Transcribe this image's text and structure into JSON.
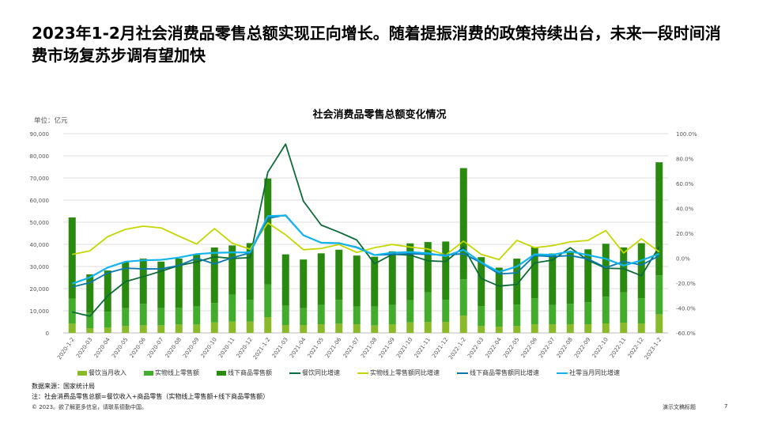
{
  "headline": "2023年1-2月社会消费品零售总额实现正向增长。随着提振消费的政策持续出台，未来一段时间消费市场复苏步调有望加快",
  "chart_data": {
    "type": "bar+line",
    "title": "社会消费品零售总额变化情况",
    "unit_label": "单位：亿元",
    "categories": [
      "2020-1-2",
      "2020-03",
      "2020-04",
      "2020-05",
      "2020-06",
      "2020-07",
      "2020-08",
      "2020-09",
      "2020-10",
      "2020-11",
      "2020-12",
      "2021-1-2",
      "2021-03",
      "2021-04",
      "2021-05",
      "2021-06",
      "2021-07",
      "2021-08",
      "2021-09",
      "2021-10",
      "2021-11",
      "2021-12",
      "2022-1-2",
      "2022-03",
      "2022-04",
      "2022-05",
      "2022-06",
      "2022-07",
      "2022-08",
      "2022-09",
      "2022-10",
      "2022-11",
      "2022-12",
      "2023-1-2"
    ],
    "left_axis": {
      "min": 0,
      "max": 90000,
      "ticks": [
        "0",
        "10,000",
        "20,000",
        "30,000",
        "40,000",
        "50,000",
        "60,000",
        "70,000",
        "80,000",
        "90,000"
      ]
    },
    "right_axis": {
      "min": -60,
      "max": 100,
      "ticks": [
        "-60.0%",
        "-40.0%",
        "-20.0%",
        "0.0%",
        "20.0%",
        "40.0%",
        "60.0%",
        "80.0%",
        "100.0%"
      ]
    },
    "grid": true,
    "legend_position": "bottom",
    "bar_series": [
      {
        "name": "餐饮当月收入",
        "color": "#8aba2a",
        "values": [
          4280,
          2140,
          2380,
          3090,
          3440,
          3440,
          3800,
          3800,
          4750,
          5110,
          5110,
          7130,
          3560,
          3560,
          3920,
          4160,
          3920,
          3440,
          3920,
          4750,
          4990,
          4990,
          7840,
          3090,
          2850,
          3090,
          3920,
          3920,
          3920,
          3920,
          4280,
          4630,
          4280,
          8430
        ]
      },
      {
        "name": "实物线上零售额",
        "color": "#43ac2c",
        "values": [
          11270,
          7120,
          7240,
          8070,
          9740,
          7720,
          7600,
          8200,
          8790,
          12230,
          9850,
          14720,
          8790,
          7600,
          8670,
          10800,
          7960,
          8440,
          8670,
          9970,
          13300,
          9970,
          16380,
          9020,
          7360,
          9740,
          11750,
          8670,
          9260,
          9970,
          12110,
          13660,
          11390,
          17570
        ]
      },
      {
        "name": "线下商品零售额",
        "color": "#2a8a10",
        "values": [
          36580,
          17190,
          18560,
          20810,
          20350,
          21040,
          22170,
          23300,
          25040,
          22170,
          25610,
          47890,
          23130,
          21990,
          23360,
          22630,
          23050,
          22520,
          24240,
          25730,
          22750,
          26310,
          50210,
          22120,
          19270,
          20720,
          23070,
          23280,
          23080,
          23860,
          23880,
          20330,
          24870,
          51070
        ]
      }
    ],
    "line_series": [
      {
        "name": "餐饮同比增速",
        "color": "#0c6b36",
        "values": [
          -43.2,
          -46.6,
          -30.2,
          -18.8,
          -14.8,
          -10.5,
          -5.9,
          -3.0,
          1.1,
          -0.2,
          0.4,
          69.0,
          91.6,
          45.8,
          26.6,
          20.9,
          14.6,
          -4.5,
          3.1,
          2.5,
          -2.1,
          -2.7,
          8.9,
          -16.4,
          -22.4,
          -21.1,
          -3.8,
          -1.5,
          8.4,
          -1.7,
          -8.1,
          -8.4,
          -14.1,
          9.2
        ]
      },
      {
        "name": "实物线上零售额同比增速",
        "color": "#c5d600",
        "values": [
          3.0,
          5.9,
          17.3,
          23.2,
          25.7,
          24.3,
          17.7,
          11.4,
          23.8,
          12.0,
          7.2,
          28.3,
          18.8,
          6.8,
          7.8,
          11.0,
          4.6,
          8.4,
          11.0,
          8.9,
          7.4,
          2.5,
          13.7,
          3.0,
          -1.1,
          14.3,
          8.4,
          10.1,
          13.1,
          14.3,
          22.2,
          4.2,
          15.6,
          5.1
        ]
      },
      {
        "name": "线下商品零售额同比增速",
        "color": "#0a78b0",
        "values": [
          -23.2,
          -19.6,
          -11.8,
          -8.0,
          -8.6,
          -8.6,
          -5.9,
          0.0,
          -4.6,
          0.4,
          4.2,
          32.0,
          34.6,
          18.4,
          12.4,
          12.0,
          8.9,
          2.5,
          3.0,
          3.6,
          3.0,
          2.5,
          3.6,
          -3.8,
          -12.7,
          -11.8,
          2.1,
          1.3,
          2.1,
          -0.6,
          -7.6,
          -2.7,
          -5.5,
          1.9
        ]
      },
      {
        "name": "社零当月同比增速",
        "color": "#12b4ee",
        "values": [
          -20.5,
          -15.4,
          -7.5,
          -2.8,
          -1.7,
          -1.3,
          0.5,
          3.3,
          4.3,
          4.6,
          4.6,
          33.8,
          34.2,
          18.4,
          12.4,
          12.1,
          8.5,
          2.5,
          4.4,
          4.9,
          3.9,
          1.7,
          6.7,
          -3.5,
          -11.1,
          -6.7,
          3.1,
          2.7,
          5.4,
          2.5,
          -0.5,
          -5.9,
          -1.8,
          3.5
        ]
      }
    ]
  },
  "notes": {
    "source": "数据来源：国家统计局",
    "note": "注：社会消费品零售总额=餐饮收入+商品零售（实物线上零售额+线下商品零售额）"
  },
  "footer": {
    "copyright": "© 2023。欲了解更多信息，请联系德勤中国。",
    "doc_title": "演示文稿标题",
    "page_number": "7"
  }
}
